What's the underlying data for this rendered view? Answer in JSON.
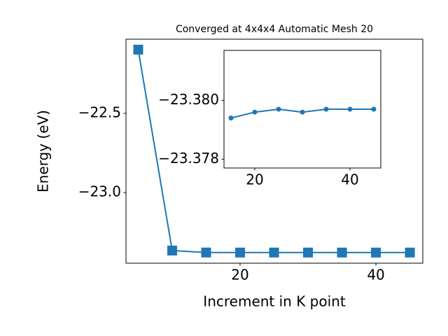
{
  "chart_data": [
    {
      "type": "line",
      "title": "Converged at 4x4x4 Automatic Mesh 20",
      "x_label": "Increment in K point",
      "y_label": "Energy (eV)",
      "x": [
        5,
        10,
        15,
        20,
        25,
        30,
        35,
        40,
        45
      ],
      "series": [
        {
          "color": "#1f77b4",
          "marker": "square",
          "values": [
            -22.097,
            -23.367,
            -23.3794,
            -23.3796,
            -23.3797,
            -23.3796,
            -23.3797,
            -23.3797,
            -23.3797
          ]
        }
      ],
      "xlim": [
        3.2,
        46.9
      ],
      "ylim": [
        -23.447,
        -22.031
      ],
      "xticks": [
        20,
        40
      ],
      "yticks": [
        {
          "value": -22.5,
          "label": "−22.5"
        },
        {
          "value": -23.0,
          "label": "−23.0"
        }
      ]
    },
    {
      "type": "line",
      "x": [
        15,
        20,
        25,
        30,
        35,
        40,
        45
      ],
      "series": [
        {
          "color": "#1f77b4",
          "marker": "circle",
          "values": [
            -23.3794,
            -23.3796,
            -23.3797,
            -23.3796,
            -23.3797,
            -23.3797,
            -23.3797
          ]
        }
      ],
      "xlim": [
        13.53,
        46.47
      ],
      "ylim": [
        -23.3777,
        -23.3817
      ],
      "xticks": [
        20,
        40
      ],
      "yticks": [
        {
          "value": -23.38,
          "label": "−23.380"
        },
        {
          "value": -23.378,
          "label": "−23.378"
        }
      ]
    }
  ]
}
